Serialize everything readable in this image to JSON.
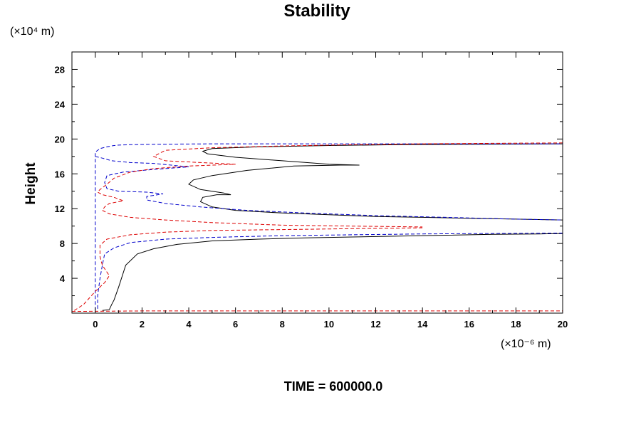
{
  "chart_data": {
    "type": "line",
    "title": "Stability",
    "ylabel": "Height",
    "xlabel": "",
    "y_unit_label": "(×10⁴ m)",
    "x_unit_label": "(×10⁻⁶ m)",
    "footer": "TIME = 600000.0",
    "xlim": [
      -1,
      20
    ],
    "ylim": [
      0,
      30
    ],
    "x_ticks": [
      0,
      2,
      4,
      6,
      8,
      10,
      12,
      14,
      16,
      18,
      20
    ],
    "y_ticks": [
      4,
      8,
      12,
      16,
      20,
      24,
      28
    ],
    "x_tick_labels": [
      "0",
      "2",
      "4",
      "6",
      "8",
      "10",
      "12",
      "14",
      "16",
      "18",
      "20"
    ],
    "y_tick_labels": [
      "4",
      "8",
      "12",
      "16",
      "20",
      "24",
      "28"
    ],
    "grid": false,
    "series": [
      {
        "color": "#000000",
        "dash": "solid",
        "x": [
          0.3,
          0.6,
          0.7,
          0.8,
          1.0,
          1.3,
          1.8,
          2.5,
          3.5,
          5,
          7,
          9,
          11,
          13,
          15,
          17,
          19,
          20
        ],
        "y": [
          0.3,
          0.4,
          1.0,
          1.5,
          3.0,
          5.5,
          6.8,
          7.4,
          7.9,
          8.3,
          8.5,
          8.65,
          8.75,
          8.85,
          8.95,
          9.05,
          9.1,
          9.15
        ]
      },
      {
        "color": "#000000",
        "dash": "solid",
        "x": [
          20,
          18,
          16,
          14,
          12,
          10,
          8,
          6,
          5,
          4.5,
          4.6,
          5.2,
          5.8,
          5.5,
          4.5,
          4.0,
          4.2,
          5,
          6.5,
          8.5,
          10.5,
          11.3,
          10,
          8,
          6,
          4.8,
          4.6,
          5,
          7,
          10,
          13,
          16,
          20
        ],
        "y": [
          10.7,
          10.8,
          10.9,
          11.0,
          11.1,
          11.3,
          11.5,
          11.8,
          12.2,
          12.8,
          13.3,
          13.6,
          13.6,
          13.8,
          14.2,
          14.8,
          15.3,
          15.8,
          16.4,
          16.9,
          17.0,
          17.0,
          17.1,
          17.5,
          17.9,
          18.3,
          18.6,
          18.9,
          19.1,
          19.25,
          19.35,
          19.4,
          19.45
        ]
      },
      {
        "color": "#0000cc",
        "dash": "dashed",
        "x": [
          0.0,
          0.0,
          0.0,
          0.0,
          0.2,
          0.5,
          0.8,
          1.0,
          1.5,
          2.5,
          5,
          8,
          12,
          16,
          20
        ],
        "y": [
          0.3,
          5,
          10,
          18.5,
          18.9,
          19.1,
          19.25,
          19.3,
          19.35,
          19.4,
          19.45,
          19.45,
          19.45,
          19.45,
          19.45
        ]
      },
      {
        "color": "#0000cc",
        "dash": "dashed",
        "x": [
          0.0,
          0.3,
          0.7,
          1.5,
          2.5,
          4,
          2.5,
          1.2,
          0.5,
          0.4,
          0.5,
          1.0,
          2.2,
          2.9,
          2.2,
          2.2,
          3,
          4.5,
          6.5,
          9,
          12,
          15,
          18,
          20
        ],
        "y": [
          18.0,
          17.8,
          17.5,
          17.3,
          17.2,
          16.8,
          16.5,
          16.2,
          15.8,
          15.0,
          14.3,
          14.0,
          13.9,
          13.7,
          13.4,
          13.0,
          12.6,
          12.2,
          11.8,
          11.5,
          11.2,
          11.0,
          10.8,
          10.7
        ]
      },
      {
        "color": "#0000cc",
        "dash": "dashed",
        "x": [
          20,
          17,
          14,
          11,
          8,
          5,
          3,
          1.5,
          0.8,
          0.4,
          0.3,
          0.2,
          0.1,
          0.1
        ],
        "y": [
          9.2,
          9.15,
          9.1,
          9.0,
          8.9,
          8.7,
          8.5,
          8.1,
          7.5,
          6.8,
          5.5,
          4.0,
          2.0,
          0.3
        ]
      },
      {
        "color": "#dd0000",
        "dash": "dashed",
        "x": [
          20,
          17,
          14,
          11,
          8,
          5,
          3,
          2.5,
          3,
          4.5,
          6,
          4,
          2.5,
          1.5,
          0.8,
          0.5,
          0.2,
          0.1,
          0.3,
          0.8,
          1.2,
          0.6,
          0.4,
          0.3,
          0.6,
          1.5,
          3,
          5,
          8,
          11,
          14
        ],
        "y": [
          19.55,
          19.5,
          19.45,
          19.35,
          19.2,
          19.0,
          18.7,
          18.0,
          17.5,
          17.3,
          17.1,
          16.9,
          16.6,
          16.2,
          15.5,
          14.8,
          14.2,
          13.9,
          13.6,
          13.3,
          12.9,
          12.6,
          12.2,
          11.8,
          11.4,
          11.0,
          10.7,
          10.4,
          10.1,
          10.0,
          9.9
        ]
      },
      {
        "color": "#dd0000",
        "dash": "dashed",
        "x": [
          14,
          11,
          8,
          5,
          3,
          1.5,
          0.5,
          0.2,
          0.2,
          0.3,
          0.6,
          0.4,
          0.0,
          -0.5,
          -0.9
        ],
        "y": [
          9.8,
          9.7,
          9.6,
          9.5,
          9.3,
          9.0,
          8.5,
          7.8,
          6.5,
          5.5,
          4.3,
          3.5,
          2.5,
          1.0,
          0.3
        ]
      },
      {
        "color": "#dd0000",
        "dash": "dashed",
        "x": [
          -1,
          2,
          5,
          8,
          11,
          14,
          17,
          20
        ],
        "y": [
          0.2,
          0.25,
          0.25,
          0.25,
          0.25,
          0.25,
          0.25,
          0.25
        ]
      }
    ]
  }
}
